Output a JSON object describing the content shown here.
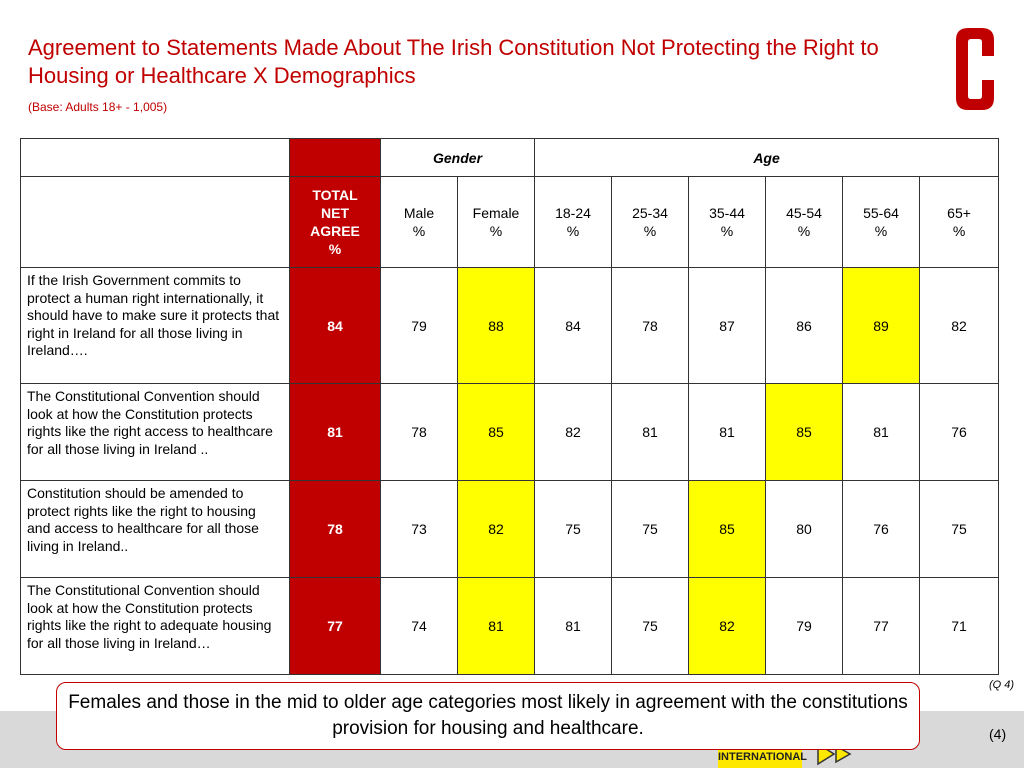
{
  "header": {
    "title": "Agreement to Statements Made About The Irish Constitution Not Protecting the Right to Housing or Healthcare X Demographics",
    "base": "(Base: Adults 18+ - 1,005)"
  },
  "logo": {
    "letter": "C",
    "color": "#c00000"
  },
  "table": {
    "group_gender": "Gender",
    "group_age": "Age",
    "col_total": [
      "TOTAL",
      "NET",
      "AGREE",
      "%"
    ],
    "cols": [
      {
        "label": "Male",
        "unit": "%"
      },
      {
        "label": "Female",
        "unit": "%"
      },
      {
        "label": "18-24",
        "unit": "%"
      },
      {
        "label": "25-34",
        "unit": "%"
      },
      {
        "label": "35-44",
        "unit": "%"
      },
      {
        "label": "45-54",
        "unit": "%"
      },
      {
        "label": "55-64",
        "unit": "%"
      },
      {
        "label": "65+",
        "unit": "%"
      }
    ],
    "rows": [
      {
        "statement": "If the Irish Government commits to protect a human right internationally, it should have to make sure it protects that right in Ireland for all those living in Ireland….",
        "total": "84",
        "values": [
          "79",
          "88",
          "84",
          "78",
          "87",
          "86",
          "89",
          "82"
        ],
        "highlight": [
          1,
          6
        ]
      },
      {
        "statement": "The Constitutional Convention should look at how the Constitution protects rights like the right access to healthcare for all those living in Ireland ..",
        "total": "81",
        "values": [
          "78",
          "85",
          "82",
          "81",
          "81",
          "85",
          "81",
          "76"
        ],
        "highlight": [
          1,
          5
        ]
      },
      {
        "statement": "Constitution should be amended to protect rights like the right to housing and access to healthcare for all those living in Ireland..",
        "total": "78",
        "values": [
          "73",
          "82",
          "75",
          "75",
          "85",
          "80",
          "76",
          "75"
        ],
        "highlight": [
          1,
          4
        ]
      },
      {
        "statement": "The Constitutional Convention should look at how the Constitution protects rights like the right to adequate housing for all those living in Ireland…",
        "total": "77",
        "values": [
          "74",
          "81",
          "81",
          "75",
          "82",
          "79",
          "77",
          "71"
        ],
        "highlight": [
          1,
          4
        ]
      }
    ]
  },
  "colors": {
    "total_fill": "#c00000",
    "highlight_fill": "#ffff00",
    "accent": "#c00000"
  },
  "footer": {
    "question_ref": "(Q 4)",
    "callout": "Females and those in the mid to older age categories most likely in agreement with the constitutions provision for housing and healthcare.",
    "brand_text": "INTERNATIONAL",
    "page_number": "(4)"
  }
}
